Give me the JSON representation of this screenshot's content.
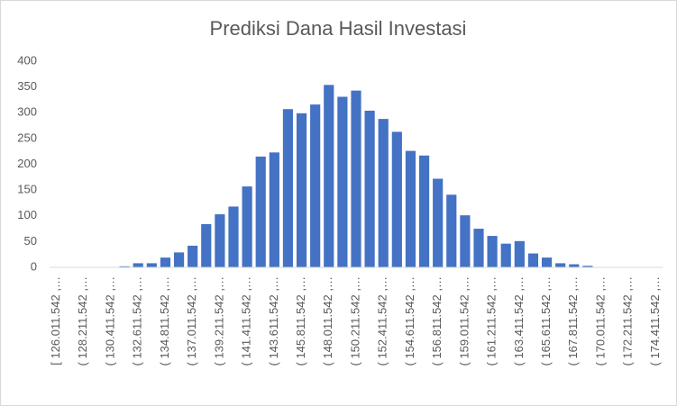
{
  "chart_data": {
    "type": "bar",
    "title": "Prediksi Dana Hasil Investasi",
    "categories": [
      "[ 126.011.542 ,…",
      null,
      "( 128.211.542 ,…",
      null,
      "( 130.411.542 ,…",
      null,
      "( 132.611.542 ,…",
      null,
      "( 134.811.542 ,…",
      null,
      "( 137.011.542 ,…",
      null,
      "( 139.211.542 ,…",
      null,
      "( 141.411.542 ,…",
      null,
      "( 143.611.542 ,…",
      null,
      "( 145.811.542 ,…",
      null,
      "( 148.011.542 ,…",
      null,
      "( 150.211.542 ,…",
      null,
      "( 152.411.542 ,…",
      null,
      "( 154.611.542 ,…",
      null,
      "( 156.811.542 ,…",
      null,
      "( 159.011.542 ,…",
      null,
      "( 161.211.542 ,…",
      null,
      "( 163.411.542 ,…",
      null,
      "( 165.611.542 ,…",
      null,
      "( 167.811.542 ,…",
      null,
      "( 170.011.542 ,…",
      null,
      "( 172.211.542 ,…",
      null,
      "( 174.411.542 ,…"
    ],
    "values": [
      0,
      0,
      0,
      0,
      0,
      2,
      8,
      8,
      19,
      29,
      42,
      84,
      103,
      118,
      157,
      215,
      223,
      307,
      299,
      316,
      354,
      331,
      343,
      304,
      288,
      263,
      226,
      217,
      172,
      141,
      101,
      75,
      61,
      46,
      51,
      27,
      19,
      8,
      6,
      3,
      0,
      0,
      0,
      0,
      0
    ],
    "color": "#4472c4",
    "ylim": [
      0,
      400
    ],
    "yticks": [
      0,
      50,
      100,
      150,
      200,
      250,
      300,
      350,
      400
    ],
    "grid": false
  }
}
